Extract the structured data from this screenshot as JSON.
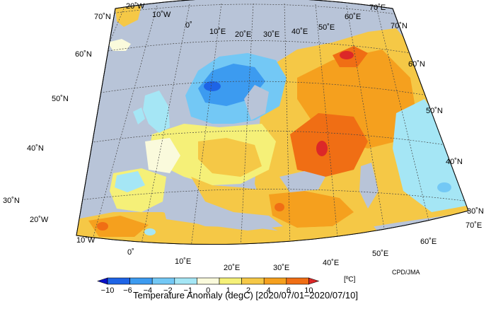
{
  "map": {
    "caption": "Temperature Anomaly (degC) [2020/07/01–2020/07/10]",
    "credit": "CPD/JMA",
    "unit": "[ºC]",
    "lat_labels_left": [
      "70˚N",
      "60˚N",
      "50˚N",
      "40˚N",
      "30˚N"
    ],
    "lat_labels_right": [
      "70˚N",
      "60˚N",
      "50˚N",
      "40˚N",
      "30˚N"
    ],
    "lon_labels_top": [
      "20˚W",
      "10˚W",
      "0˚",
      "10˚E",
      "20˚E",
      "30˚E",
      "40˚E",
      "50˚E",
      "60˚E",
      "70˚E"
    ],
    "lon_labels_bottom": [
      "20˚W",
      "10˚W",
      "0˚",
      "10˚E",
      "20˚E",
      "30˚E",
      "40˚E",
      "50˚E",
      "60˚E",
      "70˚E"
    ],
    "ocean_color": "#b8c4d8",
    "colorbar": {
      "ticks": [
        "−10",
        "−6",
        "−4",
        "−2",
        "−1",
        "0",
        "1",
        "2",
        "4",
        "6",
        "10"
      ],
      "colors": [
        "#0a10c8",
        "#1e64e6",
        "#3c9bf0",
        "#73c8f5",
        "#a5e6f5",
        "#fafadc",
        "#f5f078",
        "#f5c846",
        "#f5a01e",
        "#f06e14",
        "#dc2828"
      ]
    }
  }
}
